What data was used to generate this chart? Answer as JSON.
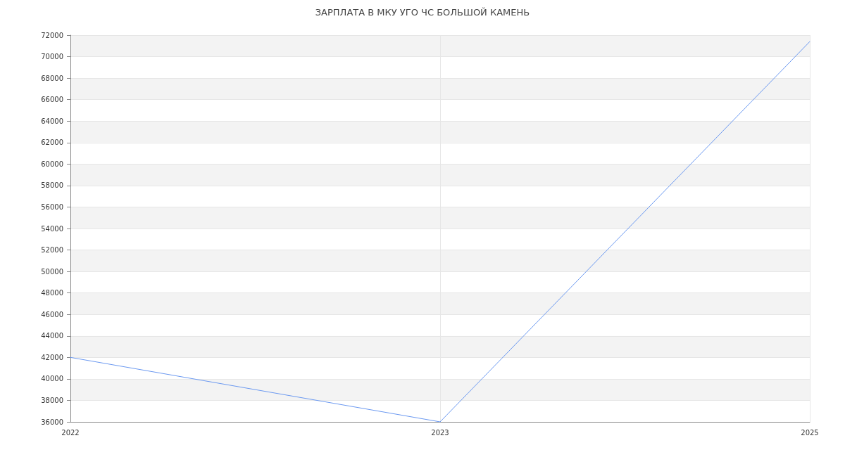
{
  "chart_data": {
    "type": "line",
    "title": "ЗАРПЛАТА В МКУ УГО ЧС БОЛЬШОЙ КАМЕНЬ",
    "categories": [
      "2022",
      "2023",
      "2025"
    ],
    "series": [
      {
        "color": "#6a98f0",
        "values": [
          42000,
          36000,
          71400
        ]
      }
    ],
    "ylim": [
      36000,
      72000
    ],
    "yticks": [
      36000,
      38000,
      40000,
      42000,
      44000,
      46000,
      48000,
      50000,
      52000,
      54000,
      56000,
      58000,
      60000,
      62000,
      64000,
      66000,
      68000,
      70000,
      72000
    ],
    "grid": true,
    "marker": "none",
    "line_style": "solid"
  }
}
